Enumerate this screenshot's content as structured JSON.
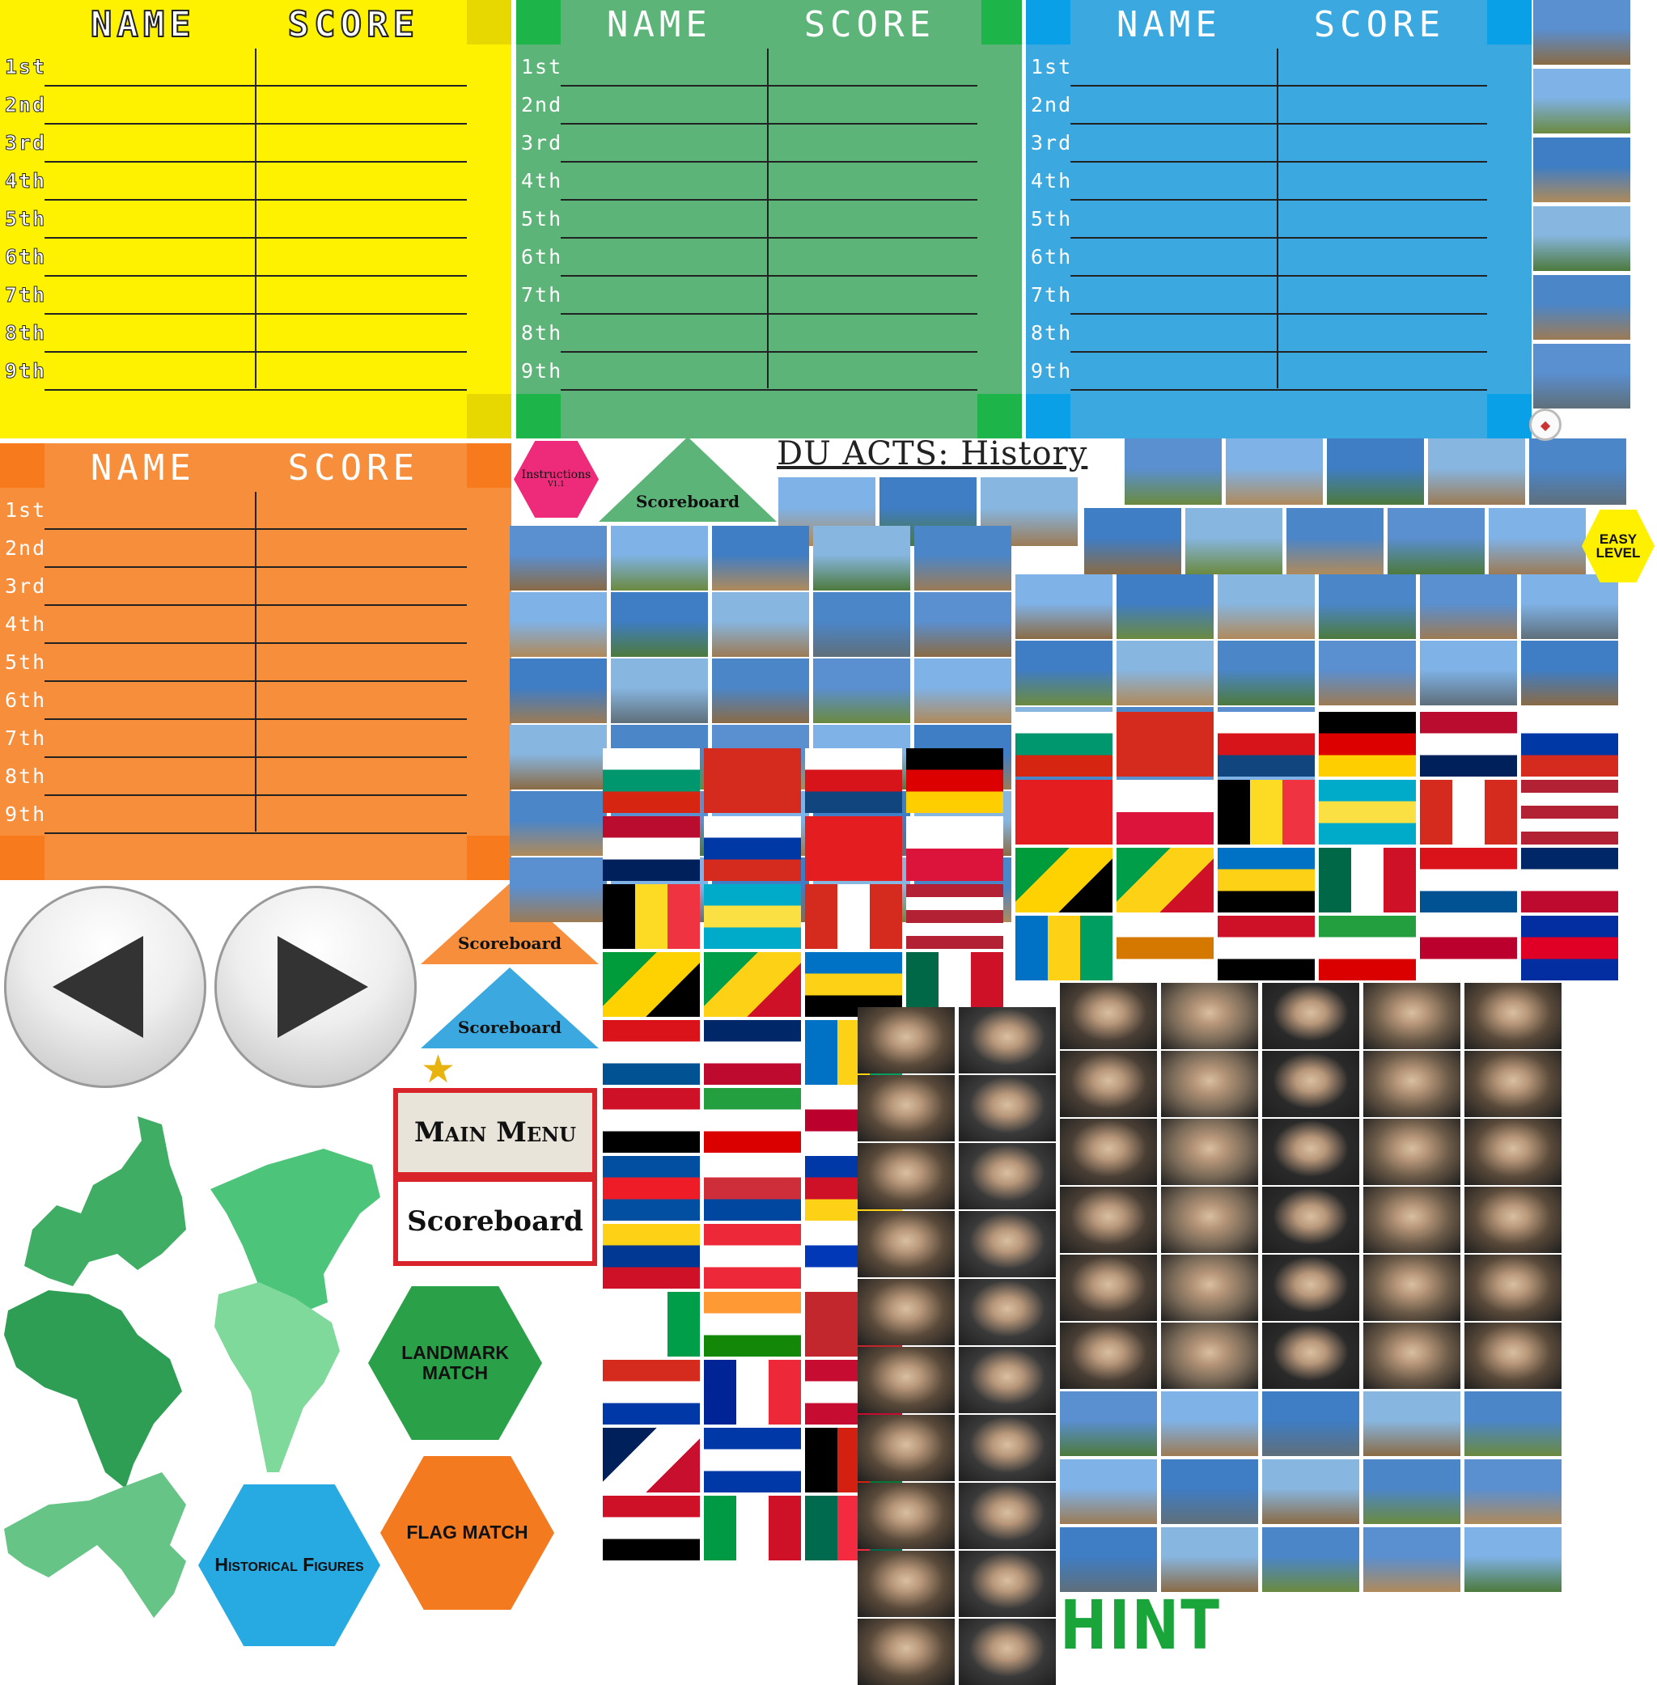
{
  "scoreboard": {
    "header_name": "NAME",
    "header_score": "SCORE",
    "ranks": [
      "1st",
      "2nd",
      "3rd",
      "4th",
      "5th",
      "6th",
      "7th",
      "8th",
      "9th"
    ]
  },
  "title": "DU  ACTS: History",
  "buttons": {
    "instructions": "Instructions",
    "instructions_version": "V1.1",
    "scoreboard": "Scoreboard",
    "main_menu": "Main Menu",
    "landmark_match": "LANDMARK MATCH",
    "flag_match": "FLAG MATCH",
    "historical_figures": "Historical Figures",
    "easy_level": "EASY LEVEL",
    "hint": "HINT"
  },
  "colors": {
    "yellow": "#fff200",
    "green": "#5db478",
    "blue": "#3ba9e0",
    "orange": "#f78e3c",
    "pink": "#ee2a7b",
    "map_green": "#3fae64"
  },
  "icons": {
    "prev": "left-arrow-icon",
    "next": "right-arrow-icon",
    "star": "star-icon",
    "compass": "compass-icon"
  }
}
